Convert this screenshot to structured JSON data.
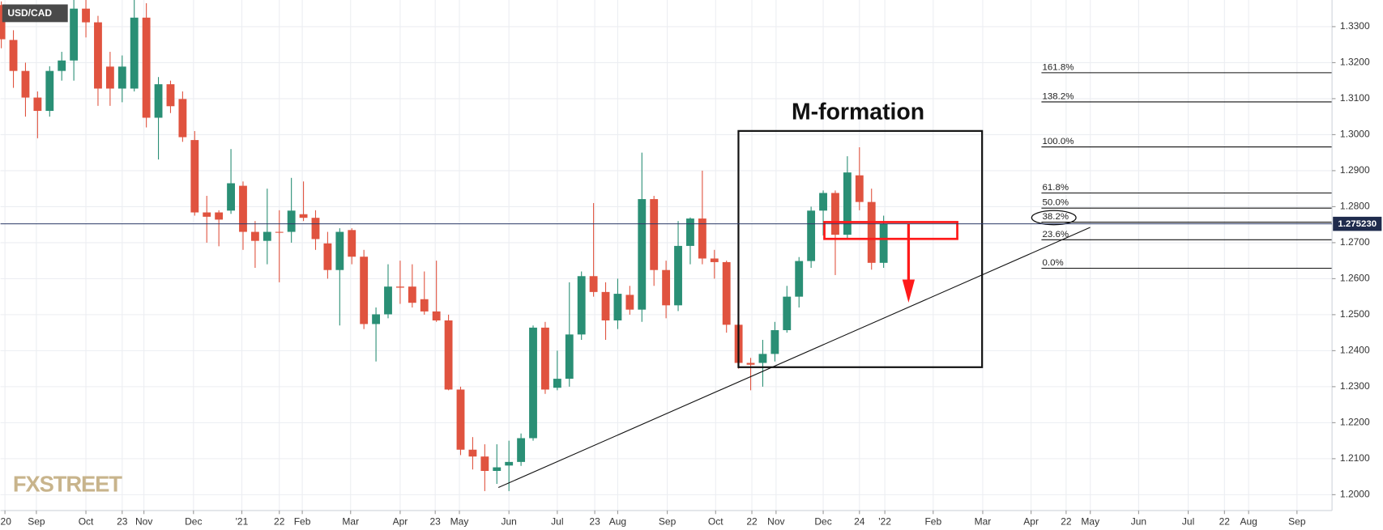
{
  "chart_data": {
    "type": "candlestick",
    "title": "USD/CAD",
    "annotation": "M-formation",
    "watermark": "FXSTREET",
    "up_color": "#2a8f75",
    "down_color": "#e0533f",
    "grid": true,
    "open": [
      1.336,
      1.3263,
      1.3177,
      1.3103,
      1.3066,
      1.3177,
      1.3206,
      1.335,
      1.3312,
      1.3189,
      1.3128,
      1.3128,
      1.3325,
      1.3047,
      1.314,
      1.3099,
      1.2985,
      1.2784,
      1.2784,
      1.2789,
      1.2858,
      1.273,
      1.2705,
      1.273,
      1.273,
      1.2779,
      1.2769,
      1.2698,
      1.2624,
      1.2735,
      1.2661,
      1.2474,
      1.2501,
      1.2578,
      1.2578,
      1.2543,
      1.2509,
      1.2484,
      1.2292,
      1.2125,
      1.2106,
      1.2066,
      1.2081,
      1.2091,
      1.2157,
      1.2464,
      1.2297,
      1.2322,
      1.2445,
      1.2607,
      1.2563,
      1.2484,
      1.2555,
      1.2514,
      1.2821,
      1.2624,
      1.2526,
      1.2691,
      1.2767,
      1.2656,
      1.2646,
      1.2472,
      1.2366,
      1.2366,
      1.2391,
      1.2457,
      1.255,
      1.2649,
      1.2789,
      1.2838,
      1.2722,
      1.2887,
      1.2813,
      1.2644
    ],
    "high": [
      1.337,
      1.329,
      1.32,
      1.312,
      1.319,
      1.323,
      1.3374,
      1.3374,
      1.333,
      1.323,
      1.322,
      1.3374,
      1.3365,
      1.316,
      1.315,
      1.312,
      1.301,
      1.283,
      1.279,
      1.296,
      1.287,
      1.276,
      1.285,
      1.279,
      1.288,
      1.287,
      1.279,
      1.273,
      1.274,
      1.274,
      1.268,
      1.252,
      1.264,
      1.265,
      1.264,
      1.262,
      1.265,
      1.25,
      1.23,
      1.216,
      1.214,
      1.214,
      1.215,
      1.217,
      1.247,
      1.248,
      1.24,
      1.259,
      1.262,
      1.281,
      1.259,
      1.26,
      1.258,
      1.295,
      1.283,
      1.265,
      1.276,
      1.277,
      1.29,
      1.268,
      1.265,
      1.248,
      1.238,
      1.243,
      1.248,
      1.258,
      1.266,
      1.28,
      1.2845,
      1.2845,
      1.294,
      1.2965,
      1.285,
      1.2775
    ],
    "low": [
      1.324,
      1.313,
      1.305,
      1.299,
      1.305,
      1.315,
      1.315,
      1.327,
      1.308,
      1.308,
      1.309,
      1.312,
      1.302,
      1.2931,
      1.306,
      1.298,
      1.2775,
      1.27,
      1.269,
      1.278,
      1.268,
      1.263,
      1.264,
      1.259,
      1.27,
      1.276,
      1.268,
      1.26,
      1.247,
      1.264,
      1.246,
      1.237,
      1.249,
      1.253,
      1.252,
      1.25,
      1.248,
      1.229,
      1.211,
      1.207,
      1.201,
      1.203,
      1.201,
      1.208,
      1.215,
      1.228,
      1.229,
      1.23,
      1.243,
      1.255,
      1.243,
      1.246,
      1.25,
      1.248,
      1.258,
      1.249,
      1.251,
      1.264,
      1.264,
      1.26,
      1.245,
      1.235,
      1.229,
      1.23,
      1.237,
      1.245,
      1.252,
      1.263,
      1.272,
      1.261,
      1.271,
      1.279,
      1.2625,
      1.263
    ],
    "close": [
      1.3265,
      1.3177,
      1.3103,
      1.3066,
      1.3177,
      1.3206,
      1.335,
      1.3312,
      1.3128,
      1.3128,
      1.3189,
      1.3325,
      1.3047,
      1.314,
      1.3079,
      1.2993,
      1.2784,
      1.2772,
      1.2764,
      1.2865,
      1.273,
      1.2705,
      1.273,
      1.2728,
      1.2789,
      1.2769,
      1.271,
      1.2624,
      1.273,
      1.2661,
      1.2474,
      1.2501,
      1.2578,
      1.2575,
      1.2533,
      1.2509,
      1.2484,
      1.2292,
      1.2125,
      1.2106,
      1.2066,
      1.2076,
      1.2091,
      1.2157,
      1.2464,
      1.2292,
      1.2322,
      1.2445,
      1.2607,
      1.2563,
      1.2484,
      1.2558,
      1.2514,
      1.2821,
      1.2624,
      1.2526,
      1.2691,
      1.2767,
      1.2656,
      1.2646,
      1.2472,
      1.2366,
      1.2361,
      1.2391,
      1.2457,
      1.255,
      1.2649,
      1.2789,
      1.2838,
      1.2722,
      1.2895,
      1.2813,
      1.2644,
      1.2752
    ],
    "last_price": {
      "value": 1.27523,
      "label": "1.275230"
    },
    "fib_levels": [
      {
        "label": "161.8%",
        "value": 1.3172
      },
      {
        "label": "138.2%",
        "value": 1.3091
      },
      {
        "label": "100.0%",
        "value": 1.2966
      },
      {
        "label": "61.8%",
        "value": 1.2838
      },
      {
        "label": "50.0%",
        "value": 1.2796
      },
      {
        "label": "38.2%",
        "value": 1.2757
      },
      {
        "label": "23.6%",
        "value": 1.2708
      },
      {
        "label": "0.0%",
        "value": 1.2629
      }
    ],
    "ylim": [
      1.1956,
      1.3374
    ],
    "yticks": [
      {
        "value": 1.2,
        "label": "1.2000"
      },
      {
        "value": 1.21,
        "label": "1.2100"
      },
      {
        "value": 1.22,
        "label": "1.2200"
      },
      {
        "value": 1.23,
        "label": "1.2300"
      },
      {
        "value": 1.24,
        "label": "1.2400"
      },
      {
        "value": 1.25,
        "label": "1.2500"
      },
      {
        "value": 1.26,
        "label": "1.2600"
      },
      {
        "value": 1.27,
        "label": "1.2700"
      },
      {
        "value": 1.28,
        "label": "1.2800"
      },
      {
        "value": 1.29,
        "label": "1.2900"
      },
      {
        "value": 1.3,
        "label": "1.3000"
      },
      {
        "value": 1.31,
        "label": "1.3100"
      },
      {
        "value": 1.32,
        "label": "1.3200"
      },
      {
        "value": 1.33,
        "label": "1.3300"
      }
    ],
    "xlim": [
      -0.07,
      110.1
    ],
    "xticks": [
      {
        "value": 0.3,
        "label": "'20"
      },
      {
        "value": 2.9,
        "label": "Sep"
      },
      {
        "value": 7.0,
        "label": "Oct"
      },
      {
        "value": 10.0,
        "label": "23"
      },
      {
        "value": 11.8,
        "label": "Nov"
      },
      {
        "value": 15.9,
        "label": "Dec"
      },
      {
        "value": 19.9,
        "label": "'21"
      },
      {
        "value": 23.0,
        "label": "22"
      },
      {
        "value": 24.9,
        "label": "Feb"
      },
      {
        "value": 28.9,
        "label": "Mar"
      },
      {
        "value": 33.0,
        "label": "Apr"
      },
      {
        "value": 35.9,
        "label": "23"
      },
      {
        "value": 37.9,
        "label": "May"
      },
      {
        "value": 42.0,
        "label": "Jun"
      },
      {
        "value": 46.0,
        "label": "Jul"
      },
      {
        "value": 49.1,
        "label": "23"
      },
      {
        "value": 51.0,
        "label": "Aug"
      },
      {
        "value": 55.1,
        "label": "Sep"
      },
      {
        "value": 59.1,
        "label": "Oct"
      },
      {
        "value": 62.1,
        "label": "22"
      },
      {
        "value": 64.1,
        "label": "Nov"
      },
      {
        "value": 68.0,
        "label": "Dec"
      },
      {
        "value": 71.0,
        "label": "24"
      },
      {
        "value": 73.1,
        "label": "'22"
      },
      {
        "value": 77.1,
        "label": "Feb"
      },
      {
        "value": 81.2,
        "label": "Mar"
      },
      {
        "value": 85.2,
        "label": "Apr"
      },
      {
        "value": 88.1,
        "label": "22"
      },
      {
        "value": 90.1,
        "label": "May"
      },
      {
        "value": 94.1,
        "label": "Jun"
      },
      {
        "value": 98.2,
        "label": "Jul"
      },
      {
        "value": 101.2,
        "label": "22"
      },
      {
        "value": 103.2,
        "label": "Aug"
      },
      {
        "value": 107.2,
        "label": "Sep"
      }
    ]
  }
}
